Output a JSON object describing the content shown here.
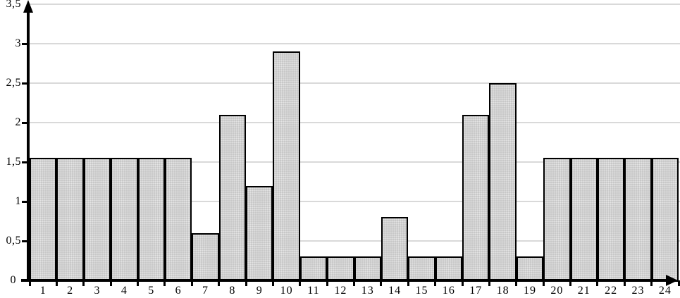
{
  "chart_data": {
    "type": "bar",
    "title": "",
    "xlabel": "",
    "ylabel": "",
    "categories": [
      "1",
      "2",
      "3",
      "4",
      "5",
      "6",
      "7",
      "8",
      "9",
      "10",
      "11",
      "12",
      "13",
      "14",
      "15",
      "16",
      "17",
      "18",
      "19",
      "20",
      "21",
      "22",
      "23",
      "24"
    ],
    "values": [
      1.55,
      1.55,
      1.55,
      1.55,
      1.55,
      1.55,
      0.6,
      2.1,
      1.2,
      2.9,
      0.3,
      0.3,
      0.3,
      0.8,
      0.3,
      0.3,
      2.1,
      2.5,
      0.3,
      1.55,
      1.55,
      1.55,
      1.55,
      1.55
    ],
    "ylim": [
      0,
      3.5
    ],
    "ytick_step": 0.5,
    "yticks": [
      {
        "value": 0,
        "label": "0"
      },
      {
        "value": 0.5,
        "label": "0,5"
      },
      {
        "value": 1,
        "label": "1"
      },
      {
        "value": 1.5,
        "label": "1,5"
      },
      {
        "value": 2,
        "label": "2"
      },
      {
        "value": 2.5,
        "label": "2,5"
      },
      {
        "value": 3,
        "label": "3"
      },
      {
        "value": 3.5,
        "label": "3,5"
      }
    ],
    "grid": true,
    "legend": false,
    "decimal_separator": "comma",
    "bars_contiguous": true,
    "colors": {
      "bar_fill": "#c8c8c8",
      "bar_border": "#000000",
      "gridline": "#d9d9d9",
      "axis": "#000000",
      "background": "#ffffff",
      "text": "#000000"
    }
  }
}
